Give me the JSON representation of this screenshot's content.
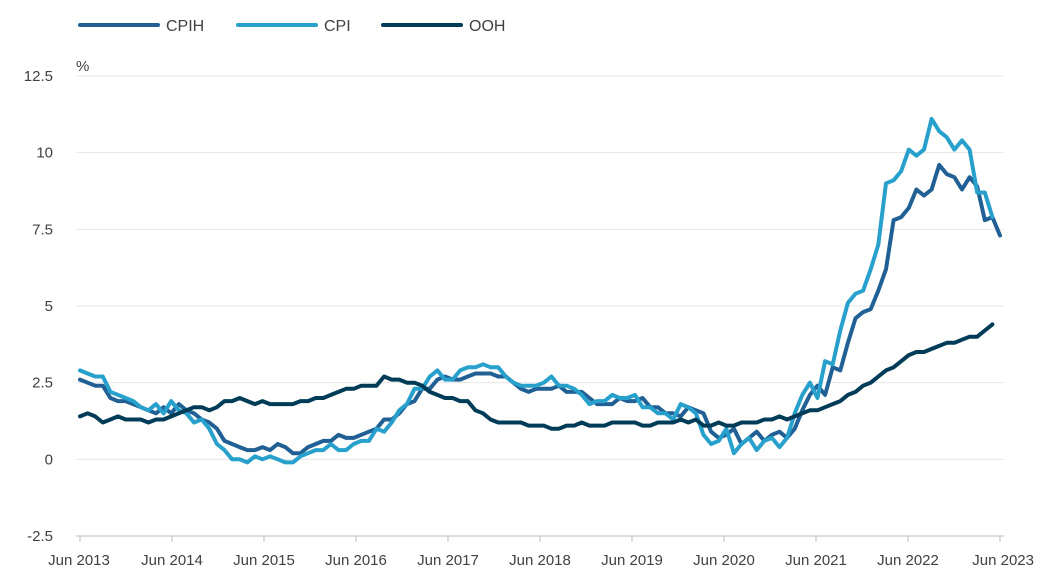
{
  "chart_data": {
    "type": "line",
    "ylabel": "%",
    "ylim": [
      -2.5,
      12.5
    ],
    "y_ticks": [
      -2.5,
      0,
      2.5,
      5,
      7.5,
      10,
      12.5
    ],
    "y_tick_labels": [
      "-2.5",
      "0",
      "2.5",
      "5",
      "7.5",
      "10",
      "12.5"
    ],
    "x_start": "Jun 2013",
    "x_end": "Jun 2023",
    "x_tick_labels": [
      "Jun 2013",
      "Jun 2014",
      "Jun 2015",
      "Jun 2016",
      "Jun 2017",
      "Jun 2018",
      "Jun 2019",
      "Jun 2020",
      "Jun 2021",
      "Jun 2022",
      "Jun 2023"
    ],
    "grid": true,
    "legend_position": "top-left",
    "series": [
      {
        "name": "CPIH",
        "color": "#206095",
        "values": [
          2.6,
          2.5,
          2.4,
          2.4,
          2.0,
          1.9,
          1.9,
          1.8,
          1.7,
          1.6,
          1.5,
          1.7,
          1.5,
          1.8,
          1.6,
          1.5,
          1.3,
          1.2,
          1.0,
          0.6,
          0.5,
          0.4,
          0.3,
          0.3,
          0.4,
          0.3,
          0.5,
          0.4,
          0.2,
          0.2,
          0.4,
          0.5,
          0.6,
          0.6,
          0.8,
          0.7,
          0.7,
          0.8,
          0.9,
          1.0,
          1.3,
          1.3,
          1.5,
          1.8,
          1.9,
          2.3,
          2.3,
          2.6,
          2.7,
          2.6,
          2.6,
          2.7,
          2.8,
          2.8,
          2.8,
          2.7,
          2.7,
          2.5,
          2.3,
          2.2,
          2.3,
          2.3,
          2.3,
          2.4,
          2.2,
          2.2,
          2.2,
          2.0,
          1.8,
          1.8,
          1.8,
          2.0,
          1.9,
          1.9,
          2.0,
          1.7,
          1.7,
          1.5,
          1.5,
          1.4,
          1.7,
          1.6,
          1.5,
          0.9,
          0.7,
          0.8,
          1.0,
          0.5,
          0.7,
          0.9,
          0.6,
          0.8,
          0.9,
          0.7,
          1.0,
          1.6,
          2.1,
          2.4,
          2.1,
          3.0,
          2.9,
          3.8,
          4.6,
          4.8,
          4.9,
          5.5,
          6.2,
          7.8,
          7.9,
          8.2,
          8.8,
          8.6,
          8.8,
          9.6,
          9.3,
          9.2,
          8.8,
          9.2,
          8.9,
          7.8,
          7.9,
          7.3
        ]
      },
      {
        "name": "CPI",
        "color": "#27a0cc",
        "values": [
          2.9,
          2.8,
          2.7,
          2.7,
          2.2,
          2.1,
          2.0,
          1.9,
          1.7,
          1.6,
          1.8,
          1.5,
          1.9,
          1.6,
          1.5,
          1.2,
          1.3,
          1.0,
          0.5,
          0.3,
          0.0,
          0.0,
          -0.1,
          0.1,
          0.0,
          0.1,
          0.0,
          -0.1,
          -0.1,
          0.1,
          0.2,
          0.3,
          0.3,
          0.5,
          0.3,
          0.3,
          0.5,
          0.6,
          0.6,
          1.0,
          0.9,
          1.2,
          1.6,
          1.8,
          2.3,
          2.3,
          2.7,
          2.9,
          2.6,
          2.6,
          2.9,
          3.0,
          3.0,
          3.1,
          3.0,
          3.0,
          2.7,
          2.5,
          2.4,
          2.4,
          2.4,
          2.5,
          2.7,
          2.4,
          2.4,
          2.3,
          2.1,
          1.8,
          1.9,
          1.9,
          2.1,
          2.0,
          2.0,
          2.1,
          1.7,
          1.7,
          1.5,
          1.5,
          1.3,
          1.8,
          1.7,
          1.5,
          0.8,
          0.5,
          0.6,
          1.0,
          0.2,
          0.5,
          0.7,
          0.3,
          0.6,
          0.7,
          0.4,
          0.7,
          1.5,
          2.1,
          2.5,
          2.0,
          3.2,
          3.1,
          4.2,
          5.1,
          5.4,
          5.5,
          6.2,
          7.0,
          9.0,
          9.1,
          9.4,
          10.1,
          9.9,
          10.1,
          11.1,
          10.7,
          10.5,
          10.1,
          10.4,
          10.1,
          8.7,
          8.7,
          7.9
        ]
      },
      {
        "name": "OOH",
        "color": "#003c57",
        "values": [
          1.4,
          1.5,
          1.4,
          1.2,
          1.3,
          1.4,
          1.3,
          1.3,
          1.3,
          1.2,
          1.3,
          1.3,
          1.4,
          1.5,
          1.6,
          1.7,
          1.7,
          1.6,
          1.7,
          1.9,
          1.9,
          2.0,
          1.9,
          1.8,
          1.9,
          1.8,
          1.8,
          1.8,
          1.8,
          1.9,
          1.9,
          2.0,
          2.0,
          2.1,
          2.2,
          2.3,
          2.3,
          2.4,
          2.4,
          2.4,
          2.7,
          2.6,
          2.6,
          2.5,
          2.5,
          2.4,
          2.2,
          2.1,
          2.0,
          2.0,
          1.9,
          1.9,
          1.6,
          1.5,
          1.3,
          1.2,
          1.2,
          1.2,
          1.2,
          1.1,
          1.1,
          1.1,
          1.0,
          1.0,
          1.1,
          1.1,
          1.2,
          1.1,
          1.1,
          1.1,
          1.2,
          1.2,
          1.2,
          1.2,
          1.1,
          1.1,
          1.2,
          1.2,
          1.2,
          1.3,
          1.2,
          1.3,
          1.1,
          1.1,
          1.2,
          1.1,
          1.1,
          1.2,
          1.2,
          1.2,
          1.3,
          1.3,
          1.4,
          1.3,
          1.4,
          1.5,
          1.6,
          1.6,
          1.7,
          1.8,
          1.9,
          2.1,
          2.2,
          2.4,
          2.5,
          2.7,
          2.9,
          3.0,
          3.2,
          3.4,
          3.5,
          3.5,
          3.6,
          3.7,
          3.8,
          3.8,
          3.9,
          4.0,
          4.0,
          4.2,
          4.4
        ]
      }
    ]
  }
}
